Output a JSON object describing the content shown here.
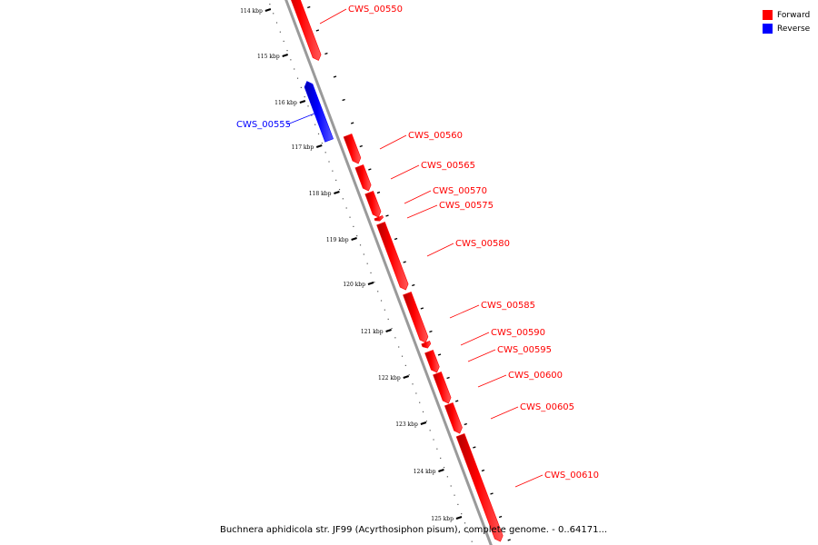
{
  "caption": "Buchnera aphidicola str. JF99 (Acyrthosiphon pisum), complete genome. - 0..64171...",
  "legend": [
    {
      "label": "Forward",
      "color": "#ff0000"
    },
    {
      "label": "Reverse",
      "color": "#0000ff"
    }
  ],
  "colors": {
    "forward": "#ff0000",
    "reverse": "#0000ff",
    "backbone": "#888888"
  },
  "ticks": [
    "114 kbp",
    "115 kbp",
    "116 kbp",
    "117 kbp",
    "118 kbp",
    "119 kbp",
    "120 kbp",
    "121 kbp",
    "122 kbp",
    "123 kbp",
    "124 kbp",
    "125 kbp"
  ],
  "genes": [
    {
      "name": "CWS_00550",
      "strand": "forward"
    },
    {
      "name": "CWS_00555",
      "strand": "reverse"
    },
    {
      "name": "CWS_00560",
      "strand": "forward"
    },
    {
      "name": "CWS_00565",
      "strand": "forward"
    },
    {
      "name": "CWS_00570",
      "strand": "forward"
    },
    {
      "name": "CWS_00575",
      "strand": "forward"
    },
    {
      "name": "CWS_00580",
      "strand": "forward"
    },
    {
      "name": "CWS_00585",
      "strand": "forward"
    },
    {
      "name": "CWS_00590",
      "strand": "forward"
    },
    {
      "name": "CWS_00595",
      "strand": "forward"
    },
    {
      "name": "CWS_00600",
      "strand": "forward"
    },
    {
      "name": "CWS_00605",
      "strand": "forward"
    },
    {
      "name": "CWS_00610",
      "strand": "forward"
    }
  ]
}
